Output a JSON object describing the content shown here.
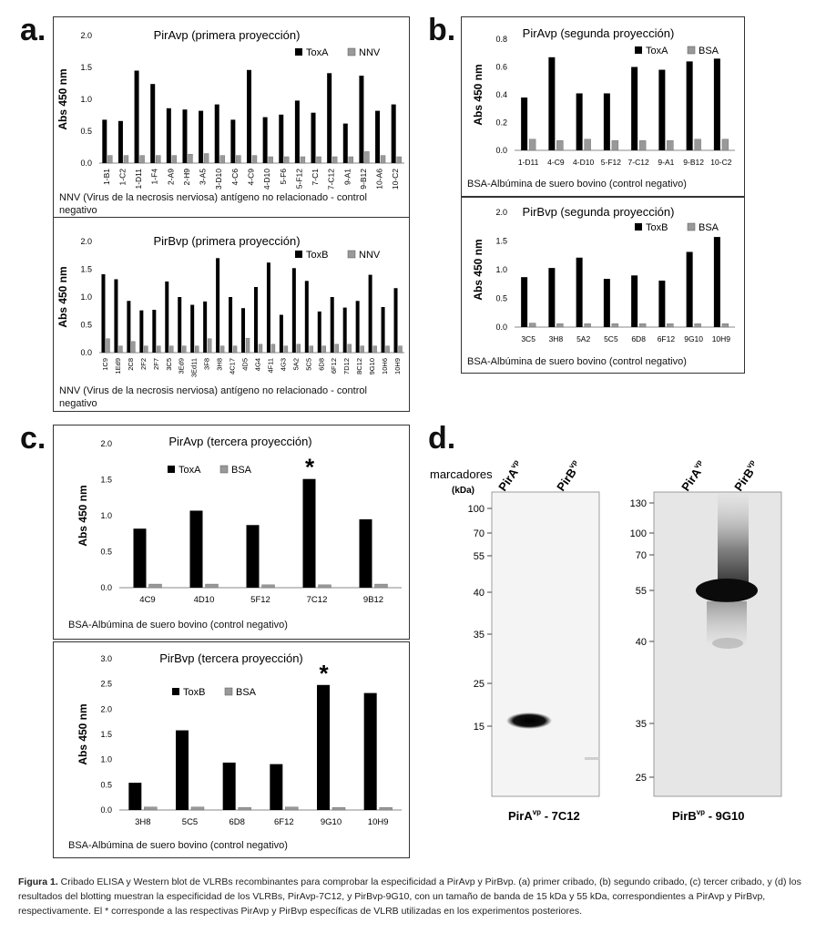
{
  "panel_letters": {
    "a": "a.",
    "b": "b.",
    "c": "c.",
    "d": "d."
  },
  "chart_data": [
    {
      "id": "a1",
      "type": "bar",
      "title": "PirAvp (primera proyección)",
      "ylabel": "Abs 450 nm",
      "ylim": [
        0,
        2.0
      ],
      "yticks": [
        "0.0",
        "0.5",
        "1.0",
        "1.5",
        "2.0"
      ],
      "categories": [
        "1-B1",
        "1-C2",
        "1-D11",
        "1-F4",
        "2-A9",
        "2-H9",
        "3-A5",
        "3-D10",
        "4-C6",
        "4-C9",
        "4-D10",
        "5-F6",
        "5-F12",
        "7-C1",
        "7-C12",
        "9-A1",
        "9-B12",
        "10-A6",
        "10-C2"
      ],
      "series": [
        {
          "name": "ToxA",
          "color": "#000000",
          "values": [
            0.68,
            0.66,
            1.45,
            1.24,
            0.86,
            0.84,
            0.82,
            0.92,
            0.68,
            1.46,
            0.72,
            0.76,
            0.98,
            0.79,
            1.41,
            0.62,
            1.37,
            0.82,
            0.92
          ]
        },
        {
          "name": "NNV",
          "color": "#999999",
          "values": [
            0.12,
            0.12,
            0.12,
            0.12,
            0.12,
            0.14,
            0.15,
            0.12,
            0.12,
            0.12,
            0.1,
            0.1,
            0.1,
            0.1,
            0.1,
            0.1,
            0.18,
            0.12,
            0.1
          ]
        }
      ],
      "note": "NNV (Virus de la necrosis nerviosa) antígeno no relacionado - control negativo"
    },
    {
      "id": "a2",
      "type": "bar",
      "title": "PirBvp (primera proyección)",
      "ylabel": "Abs 450 nm",
      "ylim": [
        0,
        2.0
      ],
      "yticks": [
        "0.0",
        "0.5",
        "1.0",
        "1.5",
        "2.0"
      ],
      "categories": [
        "1C9",
        "1Ed9",
        "2C8",
        "2F2",
        "2F7",
        "3C5",
        "3Ed9",
        "3Ed11",
        "3F8",
        "3H8",
        "4C17",
        "4D5",
        "4G4",
        "4F11",
        "4G3",
        "5A2",
        "5C5",
        "6D8",
        "6F12",
        "7D12",
        "8C12",
        "9G10",
        "10H6",
        "10H9"
      ],
      "series": [
        {
          "name": "ToxB",
          "color": "#000000",
          "values": [
            1.41,
            1.32,
            0.93,
            0.76,
            0.77,
            1.28,
            1.0,
            0.86,
            0.92,
            1.7,
            1.0,
            0.8,
            1.18,
            1.62,
            0.68,
            1.52,
            1.29,
            0.74,
            1.0,
            0.81,
            0.93,
            1.4,
            0.82,
            1.16
          ]
        },
        {
          "name": "NNV",
          "color": "#999999",
          "values": [
            0.25,
            0.12,
            0.2,
            0.12,
            0.12,
            0.12,
            0.12,
            0.12,
            0.25,
            0.12,
            0.12,
            0.26,
            0.15,
            0.15,
            0.12,
            0.15,
            0.12,
            0.12,
            0.15,
            0.15,
            0.12,
            0.12,
            0.12,
            0.12
          ]
        }
      ],
      "note": "NNV (Virus de la necrosis nerviosa) antígeno no relacionado - control negativo"
    },
    {
      "id": "b1",
      "type": "bar",
      "title": "PirAvp (segunda proyección)",
      "ylabel": "Abs 450 nm",
      "ylim": [
        0,
        0.8
      ],
      "yticks": [
        "0.0",
        "0.2",
        "0.4",
        "0.6",
        "0.8"
      ],
      "categories": [
        "1-D11",
        "4-C9",
        "4-D10",
        "5-F12",
        "7-C12",
        "9-A1",
        "9-B12",
        "10-C2"
      ],
      "series": [
        {
          "name": "ToxA",
          "color": "#000000",
          "values": [
            0.38,
            0.67,
            0.41,
            0.41,
            0.6,
            0.58,
            0.64,
            0.66
          ]
        },
        {
          "name": "BSA",
          "color": "#999999",
          "values": [
            0.08,
            0.07,
            0.08,
            0.07,
            0.07,
            0.07,
            0.08,
            0.08
          ]
        }
      ],
      "note": "BSA-Albúmina de suero bovino (control negativo)"
    },
    {
      "id": "b2",
      "type": "bar",
      "title": "PirBvp (segunda proyección)",
      "ylabel": "Abs 450 nm",
      "ylim": [
        0,
        2.0
      ],
      "yticks": [
        "0.0",
        "0.5",
        "1.0",
        "1.5",
        "2.0"
      ],
      "categories": [
        "3C5",
        "3H8",
        "5A2",
        "5C5",
        "6D8",
        "6F12",
        "9G10",
        "10H9"
      ],
      "series": [
        {
          "name": "ToxB",
          "color": "#000000",
          "values": [
            0.87,
            1.03,
            1.21,
            0.84,
            0.9,
            0.81,
            1.31,
            1.57
          ]
        },
        {
          "name": "BSA",
          "color": "#999999",
          "values": [
            0.07,
            0.06,
            0.06,
            0.06,
            0.06,
            0.06,
            0.06,
            0.06
          ]
        }
      ],
      "note": "BSA-Albúmina de suero bovino (control negativo)"
    },
    {
      "id": "c1",
      "type": "bar",
      "title": "PirAvp (tercera proyección)",
      "ylabel": "Abs 450 nm",
      "ylim": [
        0,
        2.0
      ],
      "yticks": [
        "0.0",
        "0.5",
        "1.0",
        "1.5",
        "2.0"
      ],
      "categories": [
        "4C9",
        "4D10",
        "5F12",
        "7C12",
        "9B12"
      ],
      "series": [
        {
          "name": "ToxA",
          "color": "#000000",
          "values": [
            0.82,
            1.07,
            0.87,
            1.51,
            0.95
          ]
        },
        {
          "name": "BSA",
          "color": "#999999",
          "values": [
            0.05,
            0.05,
            0.04,
            0.04,
            0.05
          ]
        }
      ],
      "star_index": 3,
      "star": "*",
      "note": "BSA-Albúmina de suero bovino (control negativo)"
    },
    {
      "id": "c2",
      "type": "bar",
      "title": "PirBvp (tercera proyección)",
      "ylabel": "Abs 450 nm",
      "ylim": [
        0,
        3.0
      ],
      "yticks": [
        "0.0",
        "0.5",
        "1.0",
        "1.5",
        "2.0",
        "2.5",
        "3.0"
      ],
      "categories": [
        "3H8",
        "5C5",
        "6D8",
        "6F12",
        "9G10",
        "10H9"
      ],
      "series": [
        {
          "name": "ToxB",
          "color": "#000000",
          "values": [
            0.54,
            1.58,
            0.94,
            0.91,
            2.48,
            2.32
          ]
        },
        {
          "name": "BSA",
          "color": "#999999",
          "values": [
            0.06,
            0.06,
            0.05,
            0.06,
            0.05,
            0.05
          ]
        }
      ],
      "star_index": 4,
      "star": "*",
      "note": "BSA-Albúmina de suero bovino (control negativo)"
    }
  ],
  "western": {
    "markers_label": "marcadores",
    "kda_label": "(kDa)",
    "lane_labels": [
      "PirA",
      "PirB"
    ],
    "lane_sup": "vp",
    "blot1": {
      "markers": [
        "100",
        "70",
        "55",
        "40",
        "35",
        "25",
        "15"
      ],
      "bottom_label": "PirA",
      "bottom_sup": "vp",
      "bottom_suffix": " - 7C12"
    },
    "blot2": {
      "markers": [
        "130",
        "100",
        "70",
        "55",
        "40",
        "35",
        "25"
      ],
      "bottom_label": "PirB",
      "bottom_sup": "vp",
      "bottom_suffix": " - 9G10"
    }
  },
  "caption": {
    "bold": "Figura 1.",
    "text": " Cribado ELISA y Western blot de VLRBs recombinantes para comprobar la especificidad a PirAvp y PirBvp. (a) primer cribado, (b) segundo cribado, (c) tercer cribado, y (d) los resultados del blotting muestran la especificidad de los VLRBs, PirAvp-7C12, y PirBvp-9G10, con un tamaño de banda de 15 kDa y 55 kDa, correspondientes a PirAvp y PirBvp, respectivamente. El * corresponde a las respectivas PirAvp y PirBvp específicas de VLRB utilizadas en los experimentos posteriores."
  }
}
